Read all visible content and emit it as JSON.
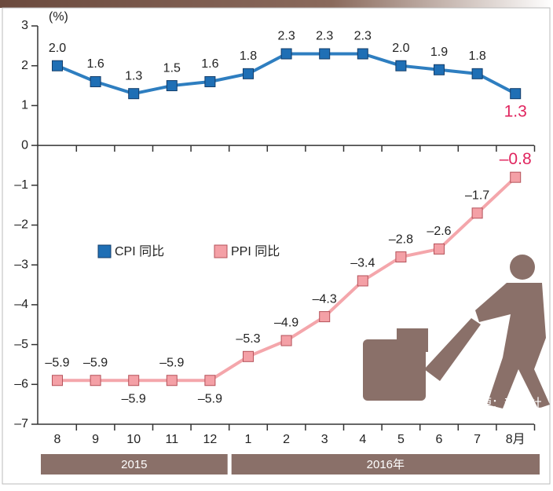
{
  "chart_data": {
    "type": "line",
    "unit_label": "(%)",
    "categories": [
      "8",
      "9",
      "10",
      "11",
      "12",
      "1",
      "2",
      "3",
      "4",
      "5",
      "6",
      "7",
      "8月"
    ],
    "groups": [
      "2015",
      "2016年"
    ],
    "series": [
      {
        "name": "CPI 同比",
        "color": "#1f6fb5",
        "values": [
          2.0,
          1.6,
          1.3,
          1.5,
          1.6,
          1.8,
          2.3,
          2.3,
          2.3,
          2.0,
          1.9,
          1.8,
          1.3
        ],
        "value_labels": [
          "2.0",
          "1.6",
          "1.3",
          "1.5",
          "1.6",
          "1.8",
          "2.3",
          "2.3",
          "2.3",
          "2.0",
          "1.9",
          "1.8",
          "1.3"
        ]
      },
      {
        "name": "PPI 同比",
        "color": "#f4a0a6",
        "values": [
          -5.9,
          -5.9,
          -5.9,
          -5.9,
          -5.9,
          -5.3,
          -4.9,
          -4.3,
          -3.4,
          -2.8,
          -2.6,
          -1.7,
          -0.8
        ],
        "value_labels": [
          "–5.9",
          "–5.9",
          "–5.9",
          "–5.9",
          "–5.9",
          "–5.3",
          "–4.9",
          "–4.3",
          "–3.4",
          "–2.8",
          "–2.6",
          "–1.7",
          "–0.8"
        ]
      }
    ],
    "ylim": [
      -7,
      3
    ],
    "yticks": [
      3,
      2,
      1,
      0,
      {
        "value": -1,
        "label": "–1"
      },
      {
        "value": -2,
        "label": "–2"
      },
      {
        "value": -3,
        "label": "–3"
      },
      {
        "value": -4,
        "label": "–4"
      },
      {
        "value": -5,
        "label": "–5"
      },
      {
        "value": -6,
        "label": "–6"
      },
      {
        "value": -7,
        "label": "–7"
      }
    ],
    "source": "資料來源：新華社"
  }
}
